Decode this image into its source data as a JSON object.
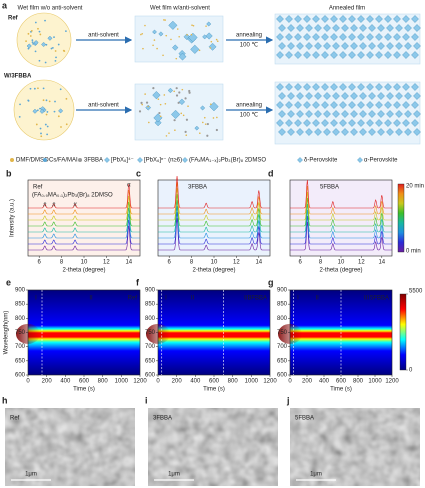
{
  "a": {
    "label": "a",
    "row_labels": [
      "Ref",
      "W/3FBBA"
    ],
    "column_titles": [
      "Wet film w/o anti-solvent",
      "Wet film w/anti-solvent",
      "Annealed film"
    ],
    "arrow_labels": [
      "anti-solvent",
      "annealing",
      "100 ℃"
    ],
    "legend": [
      "DMF/DMSO",
      "Cs/FA/MAI",
      "3FBBA",
      "[PbX₆]⁴⁻",
      "[PbX₆]ⁿ⁻ (n≥6)",
      "(FAₓMA₁₋ₓ)₂Pb₃(Br)₈ 2DMSO",
      "δ-Perovskite",
      "α-Perovskite"
    ]
  },
  "b_d": {
    "panel_labels": [
      "b",
      "c",
      "d"
    ],
    "x_label": "2-theta (degree)",
    "y_label": "Intensity (a.u.)",
    "xlim": [
      5,
      15
    ],
    "xticks": [
      6,
      8,
      10,
      12,
      14
    ],
    "trace_colors": [
      "#6a1fa0",
      "#2b2bd8",
      "#1f8fe0",
      "#18b8a0",
      "#3cbf2a",
      "#c8c81e",
      "#f09018",
      "#e02020"
    ],
    "colorbar_labels": [
      "20 min",
      "0 min"
    ],
    "panels": [
      {
        "name": "Ref",
        "formula": "(FA₀.₉MA₀.₁)₂Pb₃(Br)₈ 2DMSO",
        "peaks_x": [
          6.5,
          7.3,
          9.2,
          14
        ],
        "peaks_height": [
          0.5,
          0.5,
          0.5,
          3
        ],
        "annotations": [
          {
            "text": "#",
            "x": 6.5
          },
          {
            "text": "#",
            "x": 7.3
          },
          {
            "text": "#",
            "x": 9.2
          },
          {
            "text": "α",
            "x": 14
          }
        ]
      },
      {
        "name": "3FBBA",
        "peaks_x": [
          6.7,
          9.3,
          13.4,
          14
        ],
        "peaks_height": [
          4,
          0.6,
          0.8,
          2.2
        ]
      },
      {
        "name": "5FBBA",
        "peaks_x": [
          6.7,
          9.2,
          13.4,
          14
        ],
        "peaks_height": [
          3.5,
          0.8,
          1,
          1.6
        ]
      }
    ]
  },
  "e_g": {
    "panel_labels": [
      "e",
      "f",
      "g"
    ],
    "x_label": "Time (s)",
    "y_label": "Wavelength(nm)",
    "xlim": [
      0,
      1200
    ],
    "xticks": [
      0,
      200,
      400,
      600,
      800,
      1000,
      1200
    ],
    "ylim": [
      600,
      900
    ],
    "yticks": [
      600,
      650,
      700,
      750,
      800,
      850,
      900
    ],
    "clim": [
      0,
      5500
    ],
    "cticks": [
      0,
      5500
    ],
    "colormap": [
      "#00007f",
      "#0000ff",
      "#00ffff",
      "#ffff00",
      "#ff0000",
      "#7f0000"
    ],
    "emission_peak": 745,
    "panels": [
      {
        "name": "Ref",
        "stage_bounds": [
          150
        ],
        "stage_labels": [
          "I",
          "II"
        ]
      },
      {
        "name": "3FBBA",
        "stage_bounds": [
          40,
          700
        ],
        "stage_labels": [
          "I",
          "II",
          "III"
        ]
      },
      {
        "name": "5FBBA",
        "stage_bounds": [
          40,
          600
        ],
        "stage_labels": [
          "I",
          "II",
          "III"
        ]
      }
    ]
  },
  "h_j": {
    "panel_labels": [
      "h",
      "i",
      "j"
    ],
    "names": [
      "Ref",
      "3FBBA",
      "5FBBA"
    ],
    "scale_bar": "1μm"
  }
}
